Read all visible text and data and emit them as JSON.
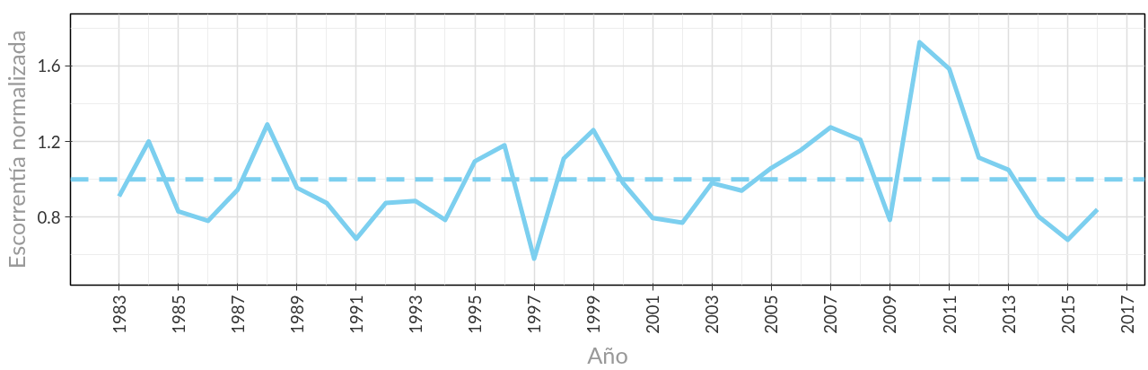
{
  "chart_data": {
    "type": "line",
    "xlabel": "Año",
    "ylabel": "Escorrentía normalizada",
    "x": [
      1983,
      1984,
      1985,
      1986,
      1987,
      1988,
      1989,
      1990,
      1991,
      1992,
      1993,
      1994,
      1995,
      1996,
      1997,
      1998,
      1999,
      2000,
      2001,
      2002,
      2003,
      2004,
      2005,
      2006,
      2007,
      2008,
      2009,
      2010,
      2011,
      2012,
      2013,
      2014,
      2015,
      2016
    ],
    "series": [
      {
        "color": "#7ccfef",
        "values": [
          0.91,
          1.2,
          0.83,
          0.78,
          0.945,
          1.29,
          0.955,
          0.875,
          0.685,
          0.875,
          0.885,
          0.785,
          1.095,
          1.18,
          0.58,
          1.11,
          1.26,
          0.98,
          0.795,
          0.77,
          0.98,
          0.94,
          1.06,
          1.155,
          1.275,
          1.21,
          0.785,
          1.725,
          1.585,
          1.115,
          1.05,
          0.805,
          0.68,
          0.84
        ]
      }
    ],
    "xlim": [
      1981.36,
      2017.6
    ],
    "ylim": [
      0.44,
      1.875
    ],
    "xticks": [
      1983,
      1985,
      1987,
      1989,
      1991,
      1993,
      1995,
      1997,
      1999,
      2001,
      2003,
      2005,
      2007,
      2009,
      2011,
      2013,
      2015,
      2017
    ],
    "yticks": [
      0.8,
      1.2,
      1.6
    ],
    "ref_lines": [
      {
        "axis": "y",
        "value": 1.0,
        "color": "#7ccfef",
        "line_style": "dashed"
      }
    ],
    "grid": true,
    "marker": "none",
    "line_style": "solid"
  }
}
